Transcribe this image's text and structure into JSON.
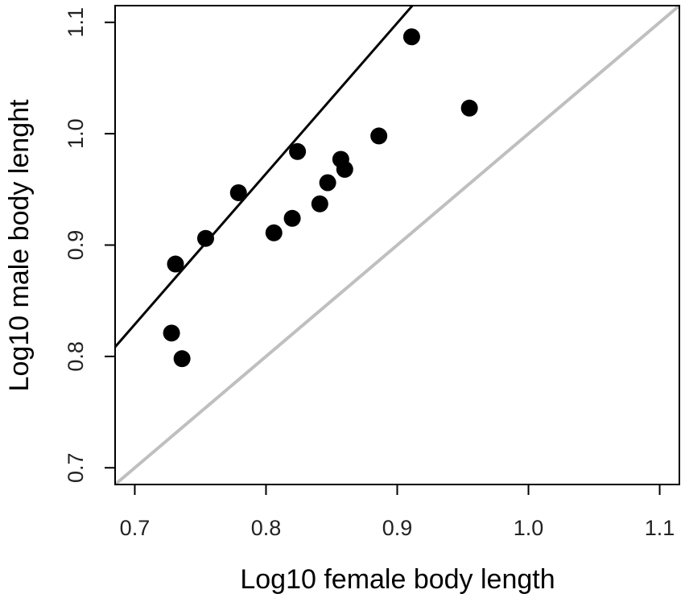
{
  "chart_data": {
    "type": "scatter",
    "xlabel": "Log10 female body length",
    "ylabel": "Log10 male body lenght",
    "xlim": [
      0.685,
      1.115
    ],
    "ylim": [
      0.685,
      1.115
    ],
    "x_ticks": [
      "0.7",
      "0.8",
      "0.9",
      "1.0",
      "1.1"
    ],
    "y_ticks": [
      "0.7",
      "0.8",
      "0.9",
      "1.0",
      "1.1"
    ],
    "grid": false,
    "series": [
      {
        "points": [
          {
            "x": 0.728,
            "y": 0.821
          },
          {
            "x": 0.731,
            "y": 0.883
          },
          {
            "x": 0.736,
            "y": 0.798
          },
          {
            "x": 0.754,
            "y": 0.906
          },
          {
            "x": 0.779,
            "y": 0.947
          },
          {
            "x": 0.806,
            "y": 0.911
          },
          {
            "x": 0.82,
            "y": 0.924
          },
          {
            "x": 0.824,
            "y": 0.984
          },
          {
            "x": 0.841,
            "y": 0.937
          },
          {
            "x": 0.847,
            "y": 0.956
          },
          {
            "x": 0.857,
            "y": 0.977
          },
          {
            "x": 0.86,
            "y": 0.968
          },
          {
            "x": 0.886,
            "y": 0.998
          },
          {
            "x": 0.911,
            "y": 1.087
          },
          {
            "x": 0.955,
            "y": 1.023
          }
        ]
      }
    ],
    "lines": [
      {
        "kind": "regression",
        "color": "#000000",
        "x": [
          0.685,
          0.9115
        ],
        "y": [
          0.8085,
          1.115
        ]
      },
      {
        "kind": "identity",
        "color": "#bfbfbf",
        "x": [
          0.685,
          1.115
        ],
        "y": [
          0.685,
          1.115
        ]
      }
    ],
    "point_color": "#000000"
  }
}
